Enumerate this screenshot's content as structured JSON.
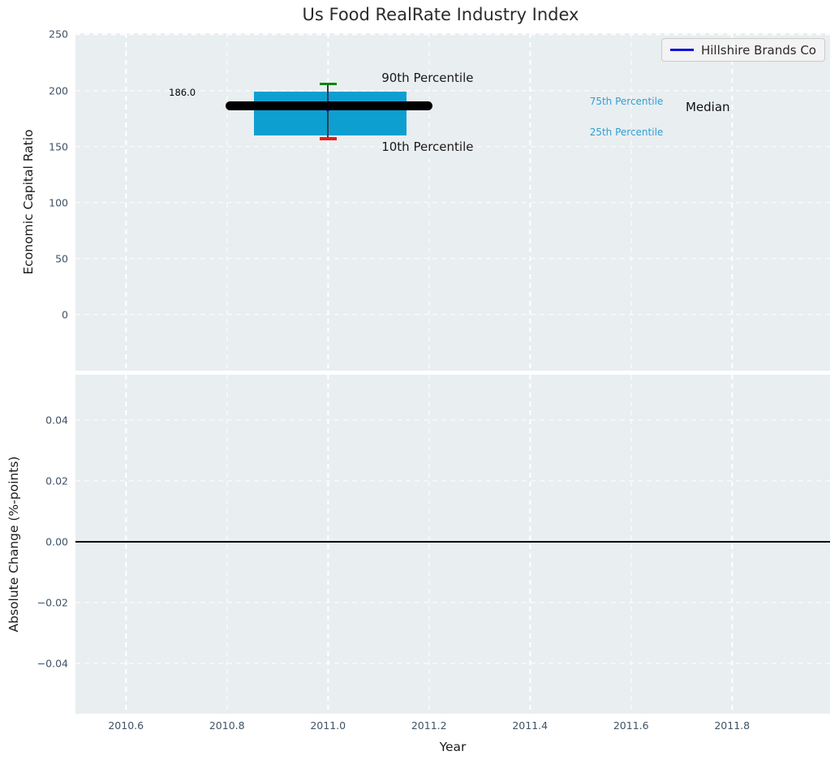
{
  "figure": {
    "background": "#ffffff",
    "panel_background": "#e9eef0",
    "grid_color": "#ffffff",
    "tick_color": "#3f5266"
  },
  "chart_data": [
    {
      "type": "boxplot",
      "title": "Us Food RealRate Industry Index",
      "ylabel": "Economic Capital Ratio",
      "xlim": [
        2010.5,
        2011.994
      ],
      "ylim": [
        -49.8,
        251.0
      ],
      "grid": "on",
      "xticks": [
        2010.6,
        2010.8,
        2011.0,
        2011.2,
        2011.4,
        2011.6,
        2011.8
      ],
      "xtick_labels": [
        "2010.6",
        "2010.8",
        "2011.0",
        "2011.2",
        "2011.4",
        "2011.6",
        "2011.8"
      ],
      "yticks": [
        0,
        50,
        100,
        150,
        200,
        250
      ],
      "ytick_labels": [
        "0",
        "50",
        "100",
        "150",
        "200",
        "250"
      ],
      "legend": {
        "label": "Hillshire Brands Co",
        "line_color": "#1212dd",
        "position": "upper right"
      },
      "series": [
        {
          "name": "Hillshire Brands Co",
          "year": 2011.0,
          "median": 186.0,
          "p10": 157,
          "p25": 160,
          "p75": 199,
          "p90": 206,
          "marker_color": "#1212dd"
        }
      ],
      "box": {
        "x0": 2010.853,
        "x1": 2011.155,
        "color": "#0d9fd0"
      },
      "median_line": {
        "x0": 2010.797,
        "x1": 2011.207,
        "value": 186.0,
        "color": "#000000",
        "thickness_px": 11
      },
      "whisker": {
        "color": "#333b42"
      },
      "caps": {
        "p90_color": "#098509",
        "p10_color": "#e81c1c",
        "half_width_years": 0.017
      },
      "annotations": [
        {
          "text": "186.0",
          "x": 2010.685,
          "y": 198.5,
          "color": "#000000",
          "size": 11.5
        },
        {
          "text": "90th Percentile",
          "x": 2011.106,
          "y": 211.0,
          "color": "#1a1a1a",
          "size": 15
        },
        {
          "text": "10th Percentile",
          "x": 2011.106,
          "y": 150.0,
          "color": "#1a1a1a",
          "size": 15
        },
        {
          "text": "75th Percentile",
          "x": 2011.518,
          "y": 190.5,
          "color": "#2f9fd6",
          "size": 12
        },
        {
          "text": "25th Percentile",
          "x": 2011.518,
          "y": 162.5,
          "color": "#2f9fd6",
          "size": 12
        },
        {
          "text": "Median",
          "x": 2011.708,
          "y": 185.0,
          "color": "#111111",
          "size": 15
        }
      ]
    },
    {
      "type": "line",
      "ylabel": "Absolute Change (%-points)",
      "xlabel": "Year",
      "xlim": [
        2010.5,
        2011.994
      ],
      "ylim": [
        -0.0566,
        0.055
      ],
      "grid": "on",
      "xticks": [
        2010.6,
        2010.8,
        2011.0,
        2011.2,
        2011.4,
        2011.6,
        2011.8
      ],
      "xtick_labels": [
        "2010.6",
        "2010.8",
        "2011.0",
        "2011.2",
        "2011.4",
        "2011.6",
        "2011.8"
      ],
      "yticks": [
        0.04,
        0.02,
        0.0,
        -0.02,
        -0.04
      ],
      "ytick_labels": [
        "0.04",
        "0.02",
        "0.00",
        "−0.02",
        "−0.04"
      ],
      "zero_line": {
        "y": 0.0,
        "color": "#000000"
      },
      "series": []
    }
  ]
}
